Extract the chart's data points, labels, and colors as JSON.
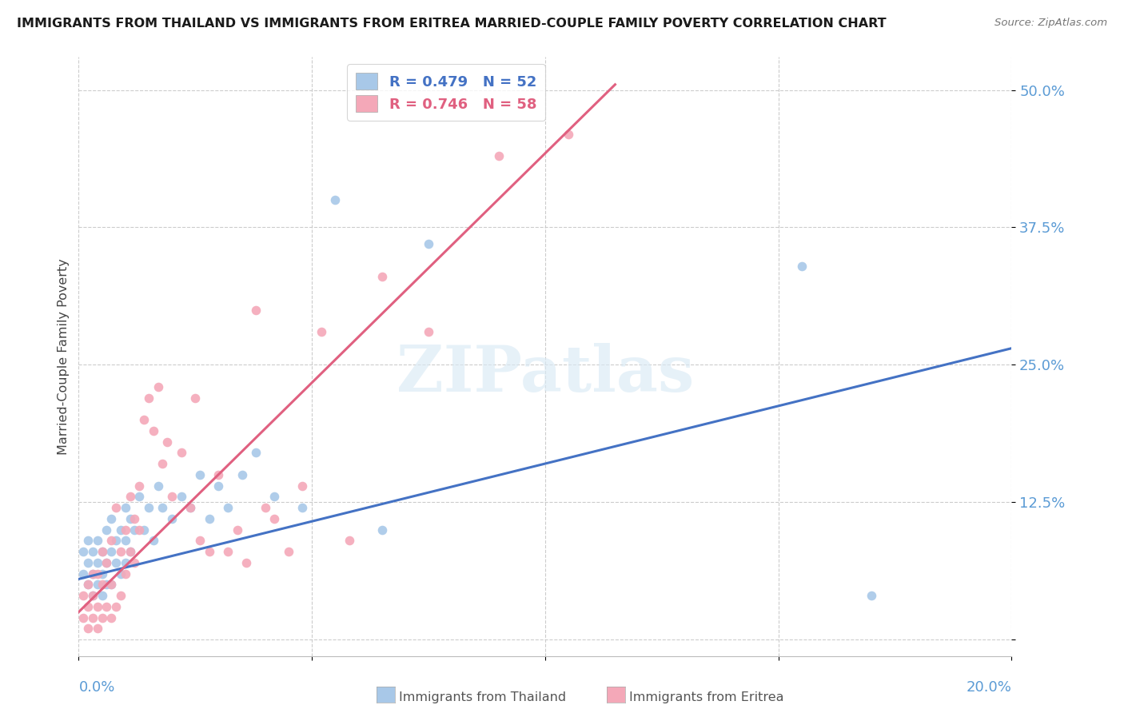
{
  "title": "IMMIGRANTS FROM THAILAND VS IMMIGRANTS FROM ERITREA MARRIED-COUPLE FAMILY POVERTY CORRELATION CHART",
  "source": "Source: ZipAtlas.com",
  "ylabel": "Married-Couple Family Poverty",
  "yticks": [
    0.0,
    0.125,
    0.25,
    0.375,
    0.5
  ],
  "ytick_labels": [
    "",
    "12.5%",
    "25.0%",
    "37.5%",
    "50.0%"
  ],
  "xlim": [
    0.0,
    0.2
  ],
  "ylim": [
    -0.015,
    0.53
  ],
  "watermark": "ZIPatlas",
  "legend_thailand": "R = 0.479   N = 52",
  "legend_eritrea": "R = 0.746   N = 58",
  "color_thailand": "#a8c8e8",
  "color_eritrea": "#f4a8b8",
  "color_thailand_line": "#4472c4",
  "color_eritrea_line": "#e06080",
  "thailand_scatter_x": [
    0.001,
    0.001,
    0.002,
    0.002,
    0.002,
    0.003,
    0.003,
    0.003,
    0.004,
    0.004,
    0.004,
    0.005,
    0.005,
    0.005,
    0.006,
    0.006,
    0.006,
    0.007,
    0.007,
    0.007,
    0.008,
    0.008,
    0.009,
    0.009,
    0.01,
    0.01,
    0.01,
    0.011,
    0.011,
    0.012,
    0.013,
    0.014,
    0.015,
    0.016,
    0.017,
    0.018,
    0.02,
    0.022,
    0.024,
    0.026,
    0.028,
    0.03,
    0.032,
    0.035,
    0.038,
    0.042,
    0.048,
    0.055,
    0.065,
    0.075,
    0.155,
    0.17
  ],
  "thailand_scatter_y": [
    0.06,
    0.08,
    0.05,
    0.07,
    0.09,
    0.04,
    0.06,
    0.08,
    0.05,
    0.07,
    0.09,
    0.04,
    0.06,
    0.08,
    0.05,
    0.07,
    0.1,
    0.05,
    0.08,
    0.11,
    0.07,
    0.09,
    0.06,
    0.1,
    0.07,
    0.09,
    0.12,
    0.08,
    0.11,
    0.1,
    0.13,
    0.1,
    0.12,
    0.09,
    0.14,
    0.12,
    0.11,
    0.13,
    0.12,
    0.15,
    0.11,
    0.14,
    0.12,
    0.15,
    0.17,
    0.13,
    0.12,
    0.4,
    0.1,
    0.36,
    0.34,
    0.04
  ],
  "eritrea_scatter_x": [
    0.001,
    0.001,
    0.002,
    0.002,
    0.002,
    0.003,
    0.003,
    0.003,
    0.004,
    0.004,
    0.004,
    0.005,
    0.005,
    0.005,
    0.006,
    0.006,
    0.007,
    0.007,
    0.007,
    0.008,
    0.008,
    0.009,
    0.009,
    0.01,
    0.01,
    0.011,
    0.011,
    0.012,
    0.012,
    0.013,
    0.013,
    0.014,
    0.015,
    0.016,
    0.017,
    0.018,
    0.019,
    0.02,
    0.022,
    0.024,
    0.025,
    0.026,
    0.028,
    0.03,
    0.032,
    0.034,
    0.036,
    0.038,
    0.04,
    0.042,
    0.045,
    0.048,
    0.052,
    0.058,
    0.065,
    0.075,
    0.09,
    0.105
  ],
  "eritrea_scatter_y": [
    0.02,
    0.04,
    0.01,
    0.03,
    0.05,
    0.02,
    0.04,
    0.06,
    0.01,
    0.03,
    0.06,
    0.02,
    0.05,
    0.08,
    0.03,
    0.07,
    0.02,
    0.05,
    0.09,
    0.03,
    0.12,
    0.04,
    0.08,
    0.06,
    0.1,
    0.13,
    0.08,
    0.07,
    0.11,
    0.1,
    0.14,
    0.2,
    0.22,
    0.19,
    0.23,
    0.16,
    0.18,
    0.13,
    0.17,
    0.12,
    0.22,
    0.09,
    0.08,
    0.15,
    0.08,
    0.1,
    0.07,
    0.3,
    0.12,
    0.11,
    0.08,
    0.14,
    0.28,
    0.09,
    0.33,
    0.28,
    0.44,
    0.46
  ],
  "thailand_line_x": [
    0.0,
    0.2
  ],
  "thailand_line_y": [
    0.055,
    0.265
  ],
  "eritrea_line_x": [
    0.0,
    0.115
  ],
  "eritrea_line_y": [
    0.025,
    0.505
  ]
}
